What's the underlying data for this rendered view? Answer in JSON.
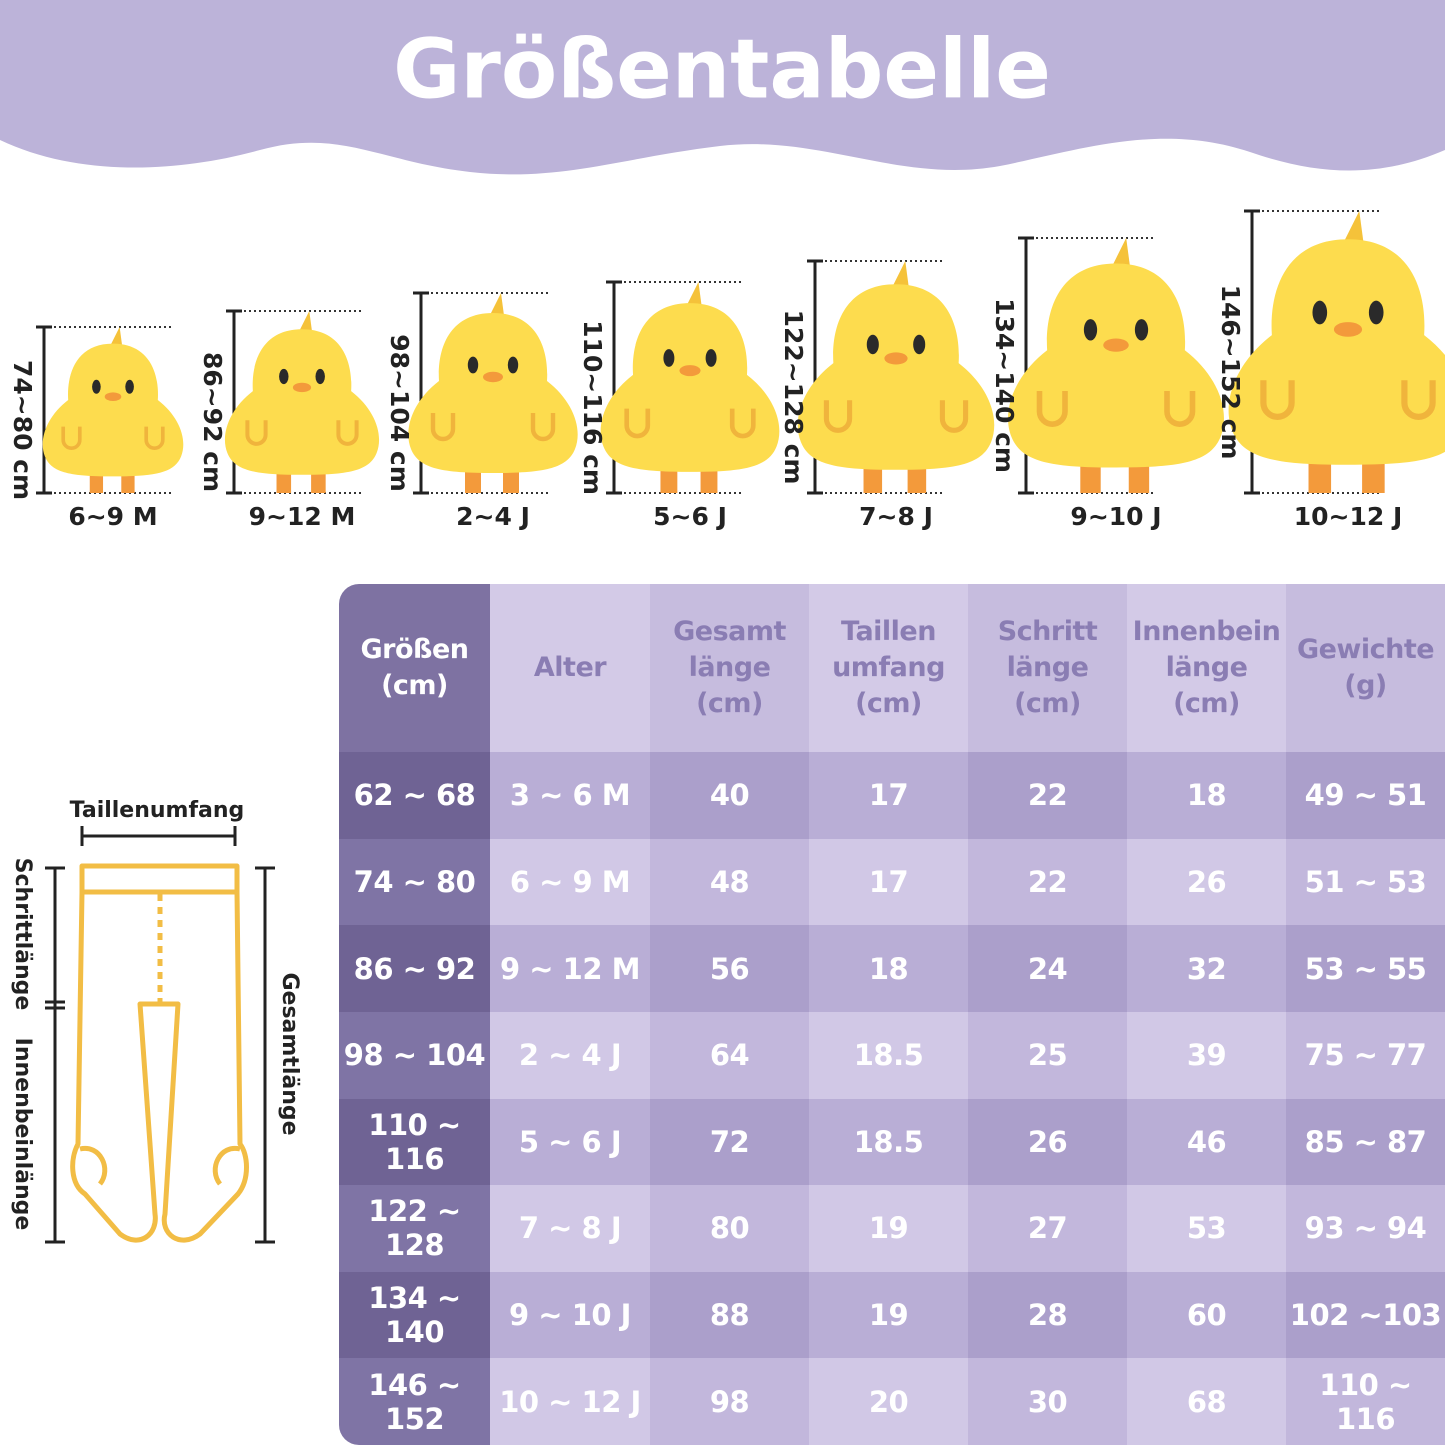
{
  "header": {
    "title": "Größentabelle"
  },
  "chicks": [
    {
      "height": "74~80 cm",
      "age": "6~9 M"
    },
    {
      "height": "86~92 cm",
      "age": "9~12 M"
    },
    {
      "height": "98~104 cm",
      "age": "2~4 J"
    },
    {
      "height": "110~116 cm",
      "age": "5~6 J"
    },
    {
      "height": "122~128 cm",
      "age": "7~8 J"
    },
    {
      "height": "134~140 cm",
      "age": "9~10 J"
    },
    {
      "height": "146~152 cm",
      "age": "10~12 J"
    }
  ],
  "diagram": {
    "waist": "Taillenumfang",
    "crotch": "Schrittlänge",
    "inseam": "Innenbeinlänge",
    "total": "Gesamtlänge"
  },
  "table": {
    "columns": [
      "Größen\n(cm)",
      "Alter",
      "Gesamt\nlänge\n(cm)",
      "Taillen\numfang\n(cm)",
      "Schritt\nlänge\n(cm)",
      "Innenbein\nlänge\n(cm)",
      "Gewichte\n(g)"
    ],
    "rows": [
      [
        "62 ~ 68",
        "3 ~ 6 M",
        40,
        17,
        22,
        18,
        "49 ~ 51"
      ],
      [
        "74 ~ 80",
        "6 ~ 9 M",
        48,
        17,
        22,
        26,
        "51 ~ 53"
      ],
      [
        "86 ~ 92",
        "9 ~ 12 M",
        56,
        18,
        24,
        32,
        "53 ~ 55"
      ],
      [
        "98 ~ 104",
        "2 ~ 4 J",
        64,
        18.5,
        25,
        39,
        "75 ~ 77"
      ],
      [
        "110 ~ 116",
        "5 ~ 6 J",
        72,
        18.5,
        26,
        46,
        "85 ~ 87"
      ],
      [
        "122 ~ 128",
        "7 ~ 8 J",
        80,
        19,
        27,
        53,
        "93 ~ 94"
      ],
      [
        "134 ~ 140",
        "9 ~ 10 J",
        88,
        19,
        28,
        60,
        "102 ~103"
      ],
      [
        "146 ~ 152",
        "10 ~ 12 J",
        98,
        20,
        30,
        68,
        "110 ~ 116"
      ]
    ]
  }
}
